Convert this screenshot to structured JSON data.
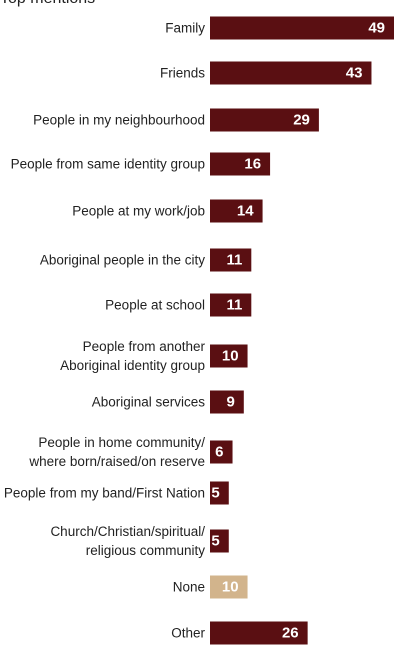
{
  "title": "Top mentions",
  "chart_data": {
    "type": "bar",
    "orientation": "horizontal",
    "title": "Top mentions",
    "xlabel": "",
    "ylabel": "",
    "xlim": [
      0,
      49
    ],
    "grid": false,
    "categories": [
      [
        "Family"
      ],
      [
        "Friends"
      ],
      [
        "People in my neighbourhood"
      ],
      [
        "People from same identity group"
      ],
      [
        "People at my work/job"
      ],
      [
        "Aboriginal people in the city"
      ],
      [
        "People at school"
      ],
      [
        "People from another",
        "Aboriginal identity group"
      ],
      [
        "Aboriginal services"
      ],
      [
        "People in home community/",
        "where born/raised/on reserve"
      ],
      [
        "People from my band/First Nation"
      ],
      [
        "Church/Christian/spiritual/",
        "religious community"
      ],
      [
        "None"
      ],
      [
        "Other"
      ]
    ],
    "values": [
      49,
      43,
      29,
      16,
      14,
      11,
      11,
      10,
      9,
      6,
      5,
      5,
      10,
      26
    ],
    "value_labels": [
      "49",
      "43",
      "29",
      "16",
      "14",
      "11",
      "11",
      "10",
      "9",
      "6",
      "5",
      "5",
      "10",
      "26"
    ],
    "bar_colors": [
      "#5a0f12",
      "#5a0f12",
      "#5a0f12",
      "#5a0f12",
      "#5a0f12",
      "#5a0f12",
      "#5a0f12",
      "#5a0f12",
      "#5a0f12",
      "#5a0f12",
      "#5a0f12",
      "#5a0f12",
      "#d2b48c",
      "#5a0f12"
    ],
    "value_label_colors": [
      "#ffffff",
      "#ffffff",
      "#ffffff",
      "#ffffff",
      "#ffffff",
      "#ffffff",
      "#ffffff",
      "#ffffff",
      "#ffffff",
      "#ffffff",
      "#ffffff",
      "#ffffff",
      "#5a0f12",
      "#ffffff"
    ]
  }
}
